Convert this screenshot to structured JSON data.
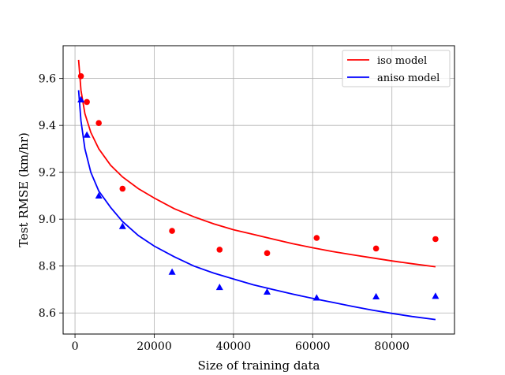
{
  "chart_data": {
    "type": "line",
    "title": "",
    "xlabel": "Size of training data",
    "ylabel": "Test RMSE (km/hr)",
    "xlim": [
      -3000,
      95800
    ],
    "ylim": [
      8.51,
      9.74
    ],
    "x_ticks": [
      0,
      20000,
      40000,
      60000,
      80000
    ],
    "x_tick_labels": [
      "0",
      "20000",
      "40000",
      "60000",
      "80000"
    ],
    "y_ticks": [
      8.6,
      8.8,
      9.0,
      9.2,
      9.4,
      9.6
    ],
    "y_tick_labels": [
      "8.6",
      "8.8",
      "9.0",
      "9.2",
      "9.4",
      "9.6"
    ],
    "grid": true,
    "legend_position": "top-right",
    "colors": {
      "iso": "#ff0000",
      "aniso": "#0000ff"
    },
    "series": [
      {
        "name": "iso model",
        "kind": "fit-curve",
        "color": "#ff0000",
        "x": [
          900,
          1500,
          2500,
          4000,
          6000,
          9000,
          12000,
          16000,
          20000,
          25000,
          30000,
          35000,
          40000,
          45000,
          50000,
          55000,
          60000,
          65000,
          70000,
          75000,
          80000,
          85000,
          91000
        ],
        "y": [
          9.68,
          9.55,
          9.45,
          9.37,
          9.3,
          9.23,
          9.18,
          9.13,
          9.09,
          9.045,
          9.01,
          8.98,
          8.955,
          8.935,
          8.915,
          8.895,
          8.878,
          8.862,
          8.848,
          8.835,
          8.822,
          8.81,
          8.797
        ]
      },
      {
        "name": "iso model",
        "kind": "points",
        "marker": "circle",
        "color": "#ff0000",
        "x": [
          1500,
          3000,
          6000,
          12000,
          24500,
          36500,
          48500,
          61000,
          76000,
          91000
        ],
        "y": [
          9.61,
          9.5,
          9.41,
          9.13,
          8.95,
          8.87,
          8.855,
          8.92,
          8.875,
          8.915
        ]
      },
      {
        "name": "aniso model",
        "kind": "fit-curve",
        "color": "#0000ff",
        "x": [
          900,
          1500,
          2500,
          4000,
          6000,
          9000,
          12000,
          16000,
          20000,
          25000,
          30000,
          35000,
          40000,
          45000,
          50000,
          55000,
          60000,
          65000,
          70000,
          75000,
          80000,
          85000,
          91000
        ],
        "y": [
          9.55,
          9.42,
          9.3,
          9.2,
          9.12,
          9.05,
          8.99,
          8.93,
          8.885,
          8.84,
          8.8,
          8.77,
          8.745,
          8.72,
          8.7,
          8.68,
          8.662,
          8.645,
          8.628,
          8.612,
          8.598,
          8.585,
          8.572
        ]
      },
      {
        "name": "aniso model",
        "kind": "points",
        "marker": "triangle",
        "color": "#0000ff",
        "x": [
          1500,
          3000,
          6000,
          12000,
          24500,
          36500,
          48500,
          61000,
          76000,
          91000
        ],
        "y": [
          9.51,
          9.36,
          9.1,
          8.97,
          8.775,
          8.71,
          8.69,
          8.665,
          8.67,
          8.672
        ]
      }
    ],
    "legend": [
      {
        "label": "iso model",
        "color": "#ff0000"
      },
      {
        "label": "aniso model",
        "color": "#0000ff"
      }
    ]
  }
}
